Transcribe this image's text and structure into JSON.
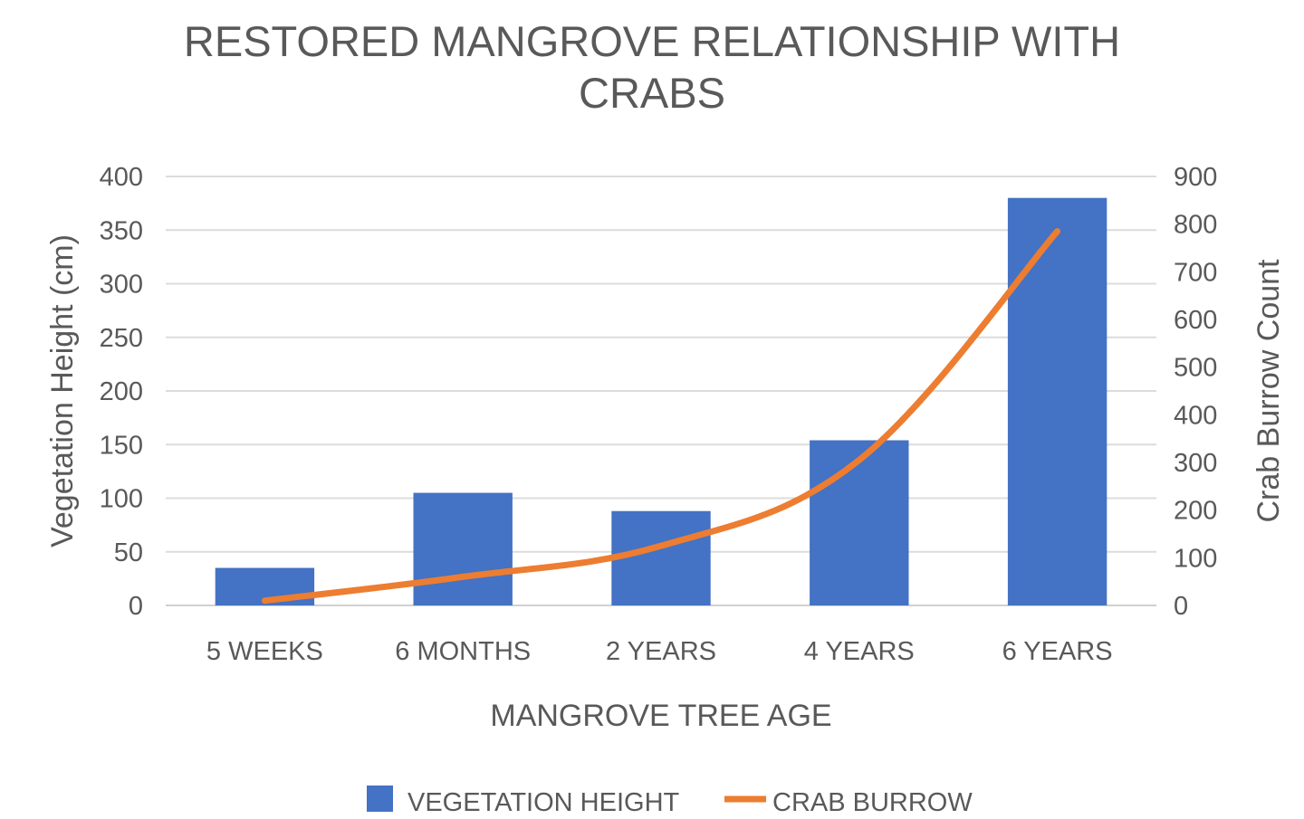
{
  "chart_data": {
    "type": "bar+line",
    "title_lines": [
      "RESTORED MANGROVE RELATIONSHIP WITH",
      "CRABS"
    ],
    "xlabel": "MANGROVE TREE AGE",
    "ylabel_left": "Vegetation Height (cm)",
    "ylabel_right": "Crab Burrow Count",
    "categories": [
      "5 WEEKS",
      "6 MONTHS",
      "2 YEARS",
      "4 YEARS",
      "6 YEARS"
    ],
    "y_left": {
      "min": 0,
      "max": 400,
      "ticks": [
        0,
        50,
        100,
        150,
        200,
        250,
        300,
        350,
        400
      ]
    },
    "y_right": {
      "min": 0,
      "max": 900,
      "ticks": [
        0,
        100,
        200,
        300,
        400,
        500,
        600,
        700,
        800,
        900
      ]
    },
    "series": [
      {
        "name": "VEGETATION HEIGHT",
        "type": "bar",
        "axis": "left",
        "color": "#4472C4",
        "values": [
          35,
          105,
          88,
          154,
          380
        ]
      },
      {
        "name": "CRAB BURROW",
        "type": "line",
        "axis": "right",
        "color": "#ED7D31",
        "smooth": true,
        "values": [
          10,
          60,
          125,
          305,
          785
        ]
      }
    ],
    "grid": true,
    "legend_position": "bottom"
  }
}
